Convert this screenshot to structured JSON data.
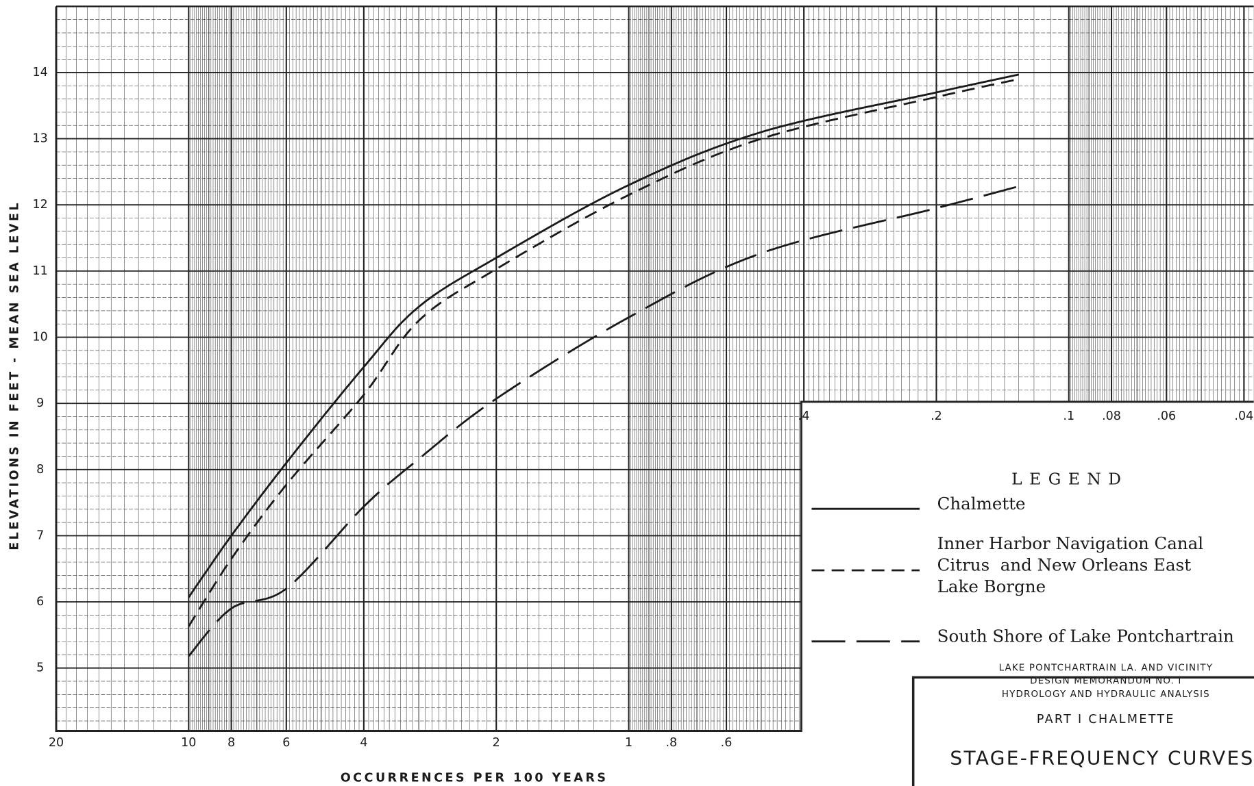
{
  "chart_data": {
    "type": "line",
    "x_label": "OCCURRENCES PER 100 YEARS",
    "y_label": "ELEVATIONS IN FEET - MEAN SEA LEVEL",
    "x_log": true,
    "grid": true,
    "minor_grid": true,
    "xlim": [
      20,
      0.038
    ],
    "ylim": [
      4.05,
      15
    ],
    "xticks": [
      20,
      10,
      8,
      6,
      4,
      2,
      1,
      {
        "value": 0.8,
        "label": ".8"
      },
      {
        "value": 0.6,
        "label": ".6"
      },
      {
        "value": 0.4,
        "label": ".4"
      },
      {
        "value": 0.2,
        "label": ".2"
      },
      {
        "value": 0.1,
        "label": ".1"
      },
      {
        "value": 0.08,
        "label": ".08"
      },
      {
        "value": 0.06,
        "label": ".06"
      },
      {
        "value": 0.04,
        "label": ".04"
      }
    ],
    "yticks": [
      5,
      6,
      7,
      8,
      9,
      10,
      11,
      12,
      13,
      14
    ],
    "legend_title": "LEGEND",
    "x": [
      10,
      8,
      6,
      4,
      3,
      2,
      1,
      0.5,
      0.2,
      0.13
    ],
    "series": [
      {
        "name": [
          "Chalmette"
        ],
        "color": "#1a1a1a",
        "line_style": "solid",
        "values": [
          6.07,
          7.0,
          8.1,
          9.55,
          10.46,
          11.2,
          12.3,
          13.1,
          13.7,
          13.97
        ]
      },
      {
        "name": [
          "Inner Harbor Navigation Canal",
          "Citrus  and New Orleans East",
          "Lake Borgne"
        ],
        "color": "#1a1a1a",
        "line_style": "dashed",
        "values": [
          5.63,
          6.65,
          7.77,
          9.13,
          10.25,
          11.03,
          12.15,
          13.0,
          13.63,
          13.9
        ]
      },
      {
        "name": [
          "South Shore of Lake Pontchartrain"
        ],
        "color": "#1a1a1a",
        "line_style": "long-dashed",
        "values": [
          5.18,
          5.9,
          6.2,
          7.44,
          8.16,
          9.07,
          10.3,
          11.27,
          11.95,
          12.28
        ]
      }
    ],
    "title_block": {
      "lines": [
        "LAKE PONTCHARTRAIN LA. AND VICINITY",
        "DESIGN MEMORANDUM NO. I",
        "HYDROLOGY AND HYDRAULIC ANALYSIS"
      ],
      "part": "PART I CHALMETTE",
      "title": "STAGE-FREQUENCY CURVES"
    }
  }
}
